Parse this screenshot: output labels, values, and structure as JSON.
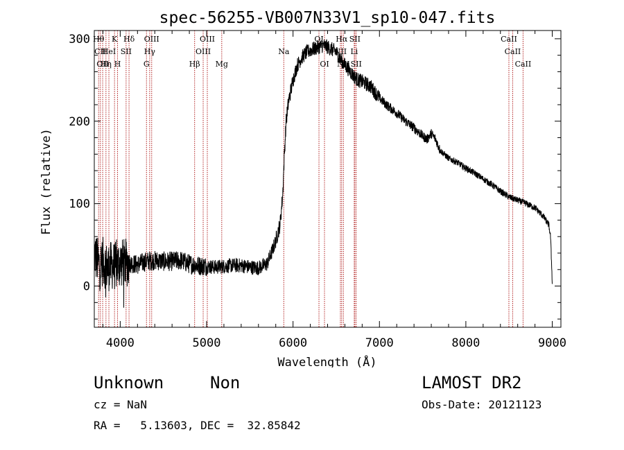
{
  "chart_data": {
    "type": "line",
    "title": "spec-56255-VB007N33V1_sp10-047.fits",
    "xlabel": "Wavelength (Å)",
    "ylabel": "Flux (relative)",
    "xlim": [
      3700,
      9100
    ],
    "ylim": [
      -50,
      310
    ],
    "xticks": [
      {
        "value": 4000,
        "label": "4000"
      },
      {
        "value": 5000,
        "label": "5000"
      },
      {
        "value": 6000,
        "label": "6000"
      },
      {
        "value": 7000,
        "label": "7000"
      },
      {
        "value": 8000,
        "label": "8000"
      },
      {
        "value": 9000,
        "label": "9000"
      }
    ],
    "yticks": [
      {
        "value": 0,
        "label": "0"
      },
      {
        "value": 100,
        "label": "100"
      },
      {
        "value": 200,
        "label": "200"
      },
      {
        "value": 300,
        "label": "300"
      }
    ],
    "line_color": "#000000",
    "marker_color": "#b22222",
    "spectrum_nodes": [
      [
        3700,
        40
      ],
      [
        3760,
        25
      ],
      [
        3800,
        30
      ],
      [
        3850,
        22
      ],
      [
        3900,
        25
      ],
      [
        3950,
        24
      ],
      [
        4000,
        28
      ],
      [
        4100,
        28
      ],
      [
        4200,
        26
      ],
      [
        4300,
        30
      ],
      [
        4400,
        31
      ],
      [
        4500,
        30
      ],
      [
        4600,
        30
      ],
      [
        4700,
        31
      ],
      [
        4800,
        27
      ],
      [
        4900,
        25
      ],
      [
        5000,
        24
      ],
      [
        5100,
        23
      ],
      [
        5200,
        24
      ],
      [
        5300,
        25
      ],
      [
        5400,
        25
      ],
      [
        5500,
        23
      ],
      [
        5600,
        22
      ],
      [
        5700,
        27
      ],
      [
        5750,
        40
      ],
      [
        5800,
        55
      ],
      [
        5850,
        75
      ],
      [
        5880,
        110
      ],
      [
        5900,
        160
      ],
      [
        5920,
        200
      ],
      [
        5950,
        225
      ],
      [
        6000,
        250
      ],
      [
        6050,
        268
      ],
      [
        6100,
        277
      ],
      [
        6150,
        283
      ],
      [
        6200,
        286
      ],
      [
        6250,
        288
      ],
      [
        6300,
        290
      ],
      [
        6350,
        292
      ],
      [
        6400,
        290
      ],
      [
        6450,
        287
      ],
      [
        6500,
        284
      ],
      [
        6550,
        275
      ],
      [
        6600,
        268
      ],
      [
        6650,
        262
      ],
      [
        6700,
        255
      ],
      [
        6750,
        250
      ],
      [
        6800,
        248
      ],
      [
        6850,
        245
      ],
      [
        6900,
        242
      ],
      [
        6950,
        235
      ],
      [
        7000,
        228
      ],
      [
        7100,
        218
      ],
      [
        7200,
        210
      ],
      [
        7300,
        200
      ],
      [
        7400,
        192
      ],
      [
        7500,
        182
      ],
      [
        7550,
        178
      ],
      [
        7600,
        185
      ],
      [
        7650,
        178
      ],
      [
        7700,
        165
      ],
      [
        7800,
        155
      ],
      [
        7900,
        150
      ],
      [
        8000,
        143
      ],
      [
        8100,
        137
      ],
      [
        8200,
        130
      ],
      [
        8300,
        123
      ],
      [
        8400,
        115
      ],
      [
        8500,
        108
      ],
      [
        8600,
        104
      ],
      [
        8700,
        100
      ],
      [
        8800,
        95
      ],
      [
        8900,
        84
      ],
      [
        8960,
        74
      ],
      [
        8980,
        60
      ],
      [
        9000,
        5
      ]
    ],
    "spectral_lines": [
      {
        "wavelength": 3750,
        "row": 0,
        "label": "Hθ"
      },
      {
        "wavelength": 3770,
        "row": 1,
        "label": "CII"
      },
      {
        "wavelength": 3797,
        "row": 2,
        "label": "OII"
      },
      {
        "wavelength": 3835,
        "row": 2,
        "label": "Hη"
      },
      {
        "wavelength": 3869,
        "row": 1,
        "label": "HeI"
      },
      {
        "wavelength": 3934,
        "row": 0,
        "label": "K"
      },
      {
        "wavelength": 3969,
        "row": 2,
        "label": "H"
      },
      {
        "wavelength": 4068,
        "row": 1,
        "label": "SII"
      },
      {
        "wavelength": 4102,
        "row": 0,
        "label": "Hδ"
      },
      {
        "wavelength": 4304,
        "row": 2,
        "label": "G"
      },
      {
        "wavelength": 4341,
        "row": 1,
        "label": "Hγ"
      },
      {
        "wavelength": 4364,
        "row": 0,
        "label": "OIII"
      },
      {
        "wavelength": 4861,
        "row": 2,
        "label": "Hβ"
      },
      {
        "wavelength": 4960,
        "row": 1,
        "label": "OIII"
      },
      {
        "wavelength": 5008,
        "row": 0,
        "label": "OIII"
      },
      {
        "wavelength": 5175,
        "row": 2,
        "label": "Mg"
      },
      {
        "wavelength": 5893,
        "row": 1,
        "label": "Na"
      },
      {
        "wavelength": 6300,
        "row": 0,
        "label": "OI"
      },
      {
        "wavelength": 6364,
        "row": 2,
        "label": "OI"
      },
      {
        "wavelength": 6548,
        "row": 1,
        "label": "NII"
      },
      {
        "wavelength": 6563,
        "row": 0,
        "label": "Hα"
      },
      {
        "wavelength": 6583,
        "row": 2,
        "label": "NII"
      },
      {
        "wavelength": 6708,
        "row": 1,
        "label": "Li"
      },
      {
        "wavelength": 6716,
        "row": 0,
        "label": "SII"
      },
      {
        "wavelength": 6731,
        "row": 2,
        "label": "SII"
      },
      {
        "wavelength": 8498,
        "row": 0,
        "label": "CaII"
      },
      {
        "wavelength": 8542,
        "row": 1,
        "label": "CaII"
      },
      {
        "wavelength": 8662,
        "row": 2,
        "label": "CaII"
      }
    ]
  },
  "info": {
    "classification": "Unknown",
    "subclass": "Non",
    "survey": "LAMOST DR2",
    "cz": "cz = NaN",
    "obs_date": "Obs-Date: 20121123",
    "coords": "RA =   5.13603, DEC =  32.85842"
  }
}
